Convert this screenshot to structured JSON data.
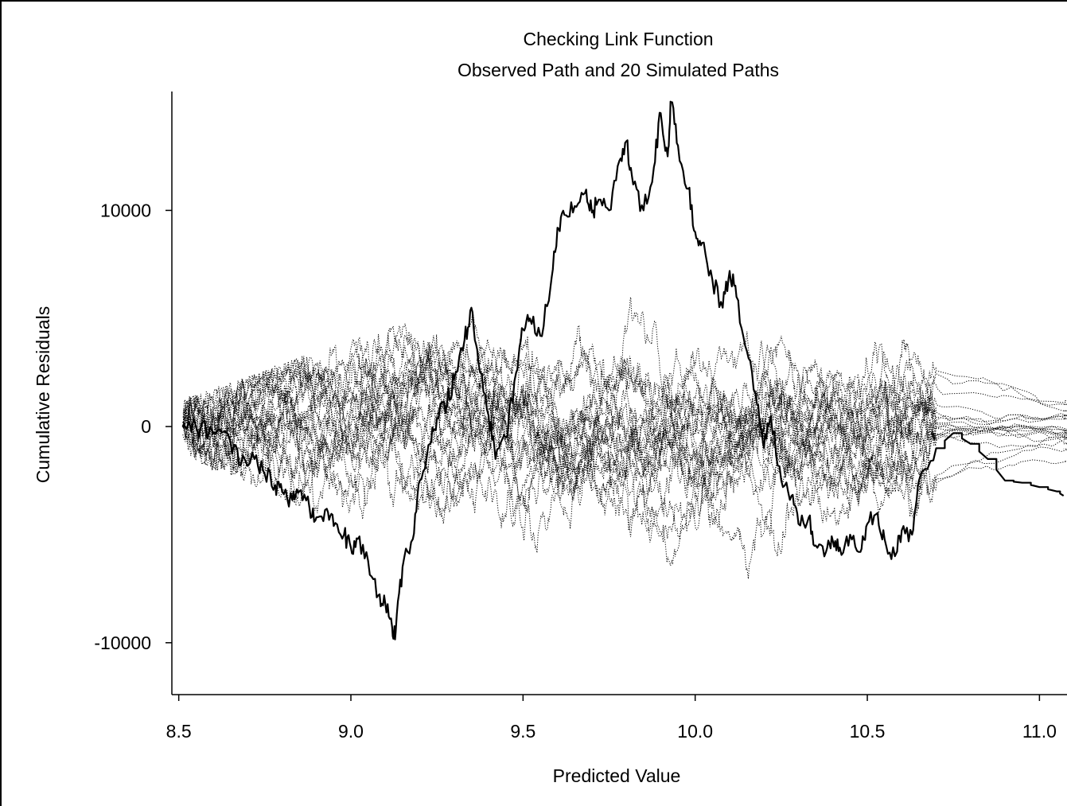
{
  "chart_data": {
    "type": "line",
    "title": "Checking Link Function",
    "subtitle": "Observed Path and 20 Simulated Paths",
    "xlabel": "Predicted Value",
    "ylabel": "Cumulative Residuals",
    "xlim": [
      8.48,
      11.08
    ],
    "ylim": [
      -12400,
      15500
    ],
    "x_ticks": [
      8.5,
      9.0,
      9.5,
      10.0,
      10.5,
      11.0
    ],
    "x_tick_labels": [
      "8.5",
      "9.0",
      "9.5",
      "10.0",
      "10.5",
      "11.0"
    ],
    "y_ticks": [
      10000,
      0,
      -10000
    ],
    "y_tick_labels": [
      "10000",
      "0",
      "-10000"
    ],
    "grid": false,
    "observed_path": {
      "x": [
        8.51,
        8.55,
        8.6,
        8.65,
        8.68,
        8.72,
        8.75,
        8.78,
        8.8,
        8.83,
        8.85,
        8.88,
        8.9,
        8.93,
        8.95,
        8.98,
        9.0,
        9.02,
        9.05,
        9.08,
        9.1,
        9.12,
        9.13,
        9.15,
        9.18,
        9.2,
        9.23,
        9.25,
        9.28,
        9.3,
        9.33,
        9.35,
        9.37,
        9.4,
        9.42,
        9.45,
        9.48,
        9.5,
        9.52,
        9.55,
        9.58,
        9.6,
        9.62,
        9.65,
        9.68,
        9.7,
        9.72,
        9.75,
        9.78,
        9.8,
        9.82,
        9.85,
        9.88,
        9.9,
        9.92,
        9.93,
        9.95,
        9.98,
        10.0,
        10.02,
        10.05,
        10.08,
        10.1,
        10.12,
        10.15,
        10.18,
        10.2,
        10.22,
        10.25,
        10.28,
        10.3,
        10.33,
        10.35,
        10.38,
        10.4,
        10.42,
        10.45,
        10.48,
        10.5,
        10.53,
        10.55,
        10.58,
        10.6,
        10.63,
        10.65,
        10.7,
        10.75,
        10.8,
        10.85,
        10.9,
        10.95,
        11.0,
        11.05,
        11.07
      ],
      "y": [
        0,
        0,
        -300,
        -700,
        -1800,
        -1500,
        -2200,
        -2700,
        -3000,
        -3400,
        -3000,
        -3800,
        -4200,
        -3800,
        -4600,
        -5000,
        -5600,
        -5200,
        -6200,
        -7800,
        -8200,
        -9300,
        -9500,
        -6500,
        -5200,
        -2500,
        -800,
        400,
        1200,
        2200,
        4000,
        5500,
        3000,
        500,
        -1500,
        -500,
        2500,
        4500,
        5000,
        4200,
        6500,
        9200,
        9800,
        10200,
        10800,
        9900,
        10500,
        10000,
        12300,
        13200,
        11200,
        10000,
        12000,
        14500,
        12500,
        15000,
        13000,
        11000,
        9000,
        8500,
        6800,
        5500,
        7200,
        6000,
        3500,
        1000,
        -1000,
        500,
        -2500,
        -3200,
        -4500,
        -4200,
        -5500,
        -5800,
        -5300,
        -5600,
        -5000,
        -5800,
        -4500,
        -4000,
        -5200,
        -6000,
        -4800,
        -5000,
        -2500,
        -1000,
        -300,
        -800,
        -1500,
        -2500,
        -2600,
        -2800,
        -3000,
        -3200
      ]
    },
    "simulated_paths_count": 20
  }
}
